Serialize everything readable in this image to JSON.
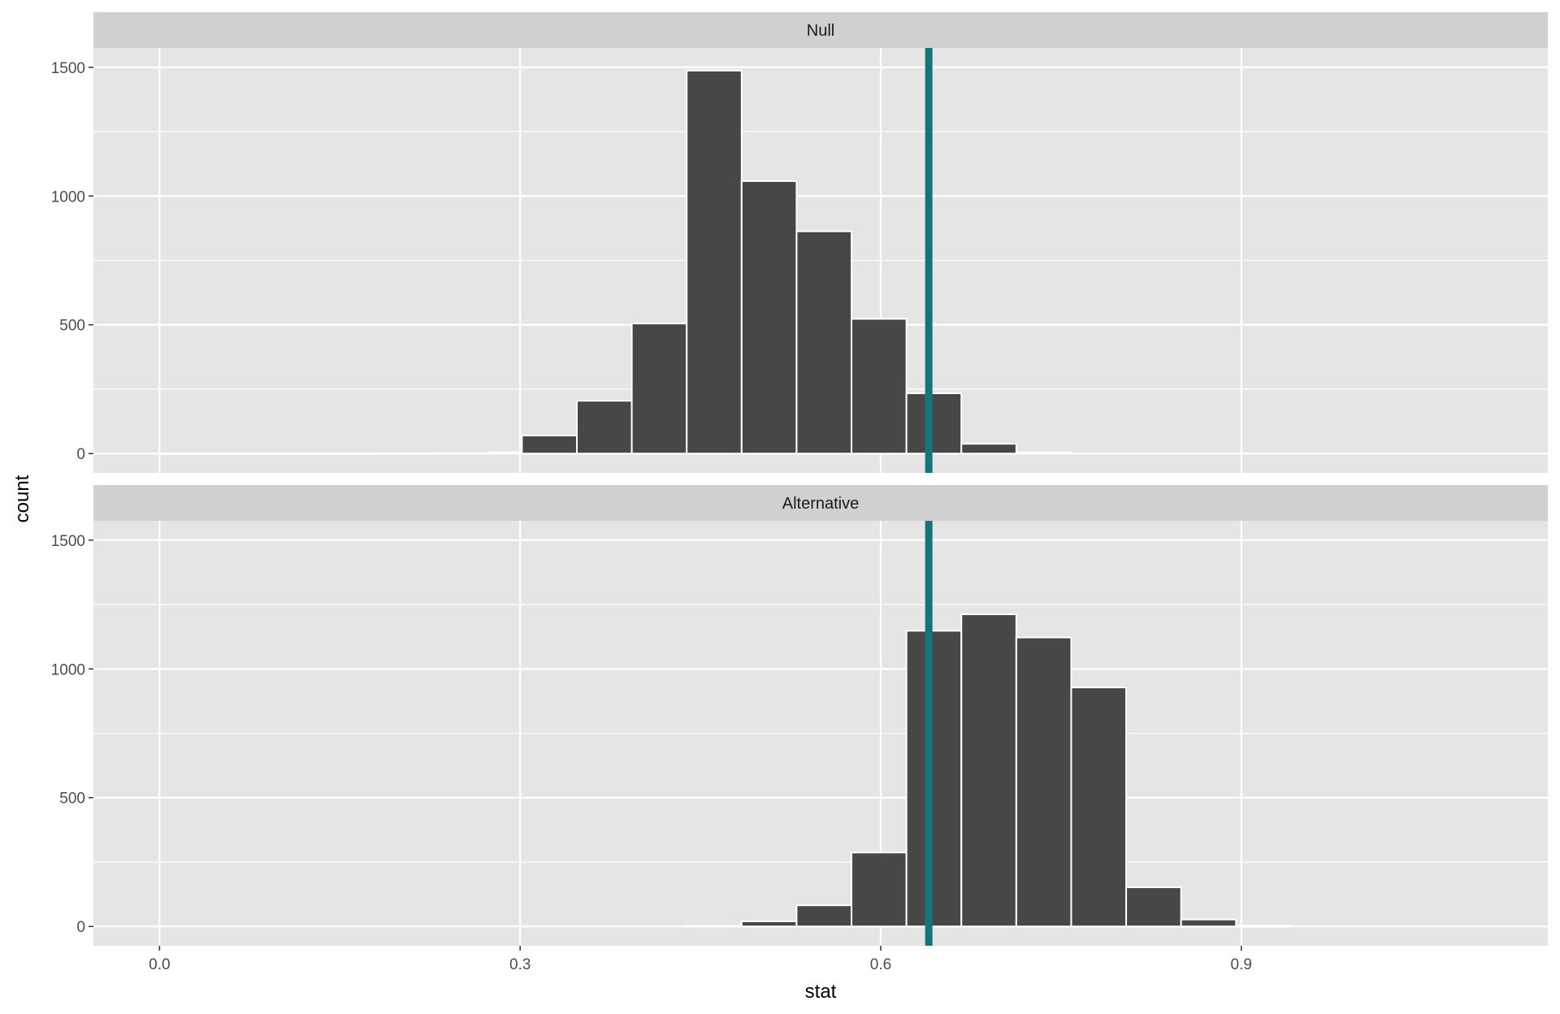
{
  "chart_data": {
    "type": "bar",
    "xlabel": "stat",
    "ylabel": "count",
    "xlim": [
      -0.055,
      1.155
    ],
    "ylim": [
      -75,
      1575
    ],
    "x_ticks": [
      0.0,
      0.3,
      0.6,
      0.9
    ],
    "x_tick_labels": [
      "0.0",
      "0.3",
      "0.6",
      "0.9"
    ],
    "y_ticks": [
      0,
      500,
      1000,
      1500
    ],
    "y_tick_labels": [
      "0",
      "500",
      "1000",
      "1500"
    ],
    "grid": true,
    "bin_width": 0.0457,
    "observed_stat": 0.64,
    "colors": {
      "bar_fill": "#474747",
      "bar_stroke": "#ffffff",
      "panel_bg": "#e5e5e5",
      "strip_bg": "#d0d0d0",
      "grid": "#ffffff",
      "observed_line": "#14767a"
    },
    "panels": [
      {
        "label": "Null",
        "bins": [
          {
            "x0": 0.0,
            "count": 0
          },
          {
            "x0": 0.0457,
            "count": 0
          },
          {
            "x0": 0.0914,
            "count": 0
          },
          {
            "x0": 0.1371,
            "count": 0
          },
          {
            "x0": 0.1828,
            "count": 1
          },
          {
            "x0": 0.2285,
            "count": 2
          },
          {
            "x0": 0.2742,
            "count": 5
          },
          {
            "x0": 0.3015,
            "count": 70
          },
          {
            "x0": 0.3472,
            "count": 205
          },
          {
            "x0": 0.3929,
            "count": 505
          },
          {
            "x0": 0.4386,
            "count": 1487
          },
          {
            "x0": 0.4843,
            "count": 1058
          },
          {
            "x0": 0.53,
            "count": 863
          },
          {
            "x0": 0.5757,
            "count": 523
          },
          {
            "x0": 0.6214,
            "count": 234
          },
          {
            "x0": 0.6671,
            "count": 38
          },
          {
            "x0": 0.7128,
            "count": 5
          }
        ]
      },
      {
        "label": "Alternative",
        "bins": [
          {
            "x0": 0.4386,
            "count": 2
          },
          {
            "x0": 0.4843,
            "count": 20
          },
          {
            "x0": 0.53,
            "count": 82
          },
          {
            "x0": 0.5757,
            "count": 287
          },
          {
            "x0": 0.6214,
            "count": 1148
          },
          {
            "x0": 0.6671,
            "count": 1212
          },
          {
            "x0": 0.7128,
            "count": 1122
          },
          {
            "x0": 0.7585,
            "count": 928
          },
          {
            "x0": 0.8042,
            "count": 152
          },
          {
            "x0": 0.8499,
            "count": 27
          },
          {
            "x0": 0.8956,
            "count": 3
          }
        ]
      }
    ]
  }
}
